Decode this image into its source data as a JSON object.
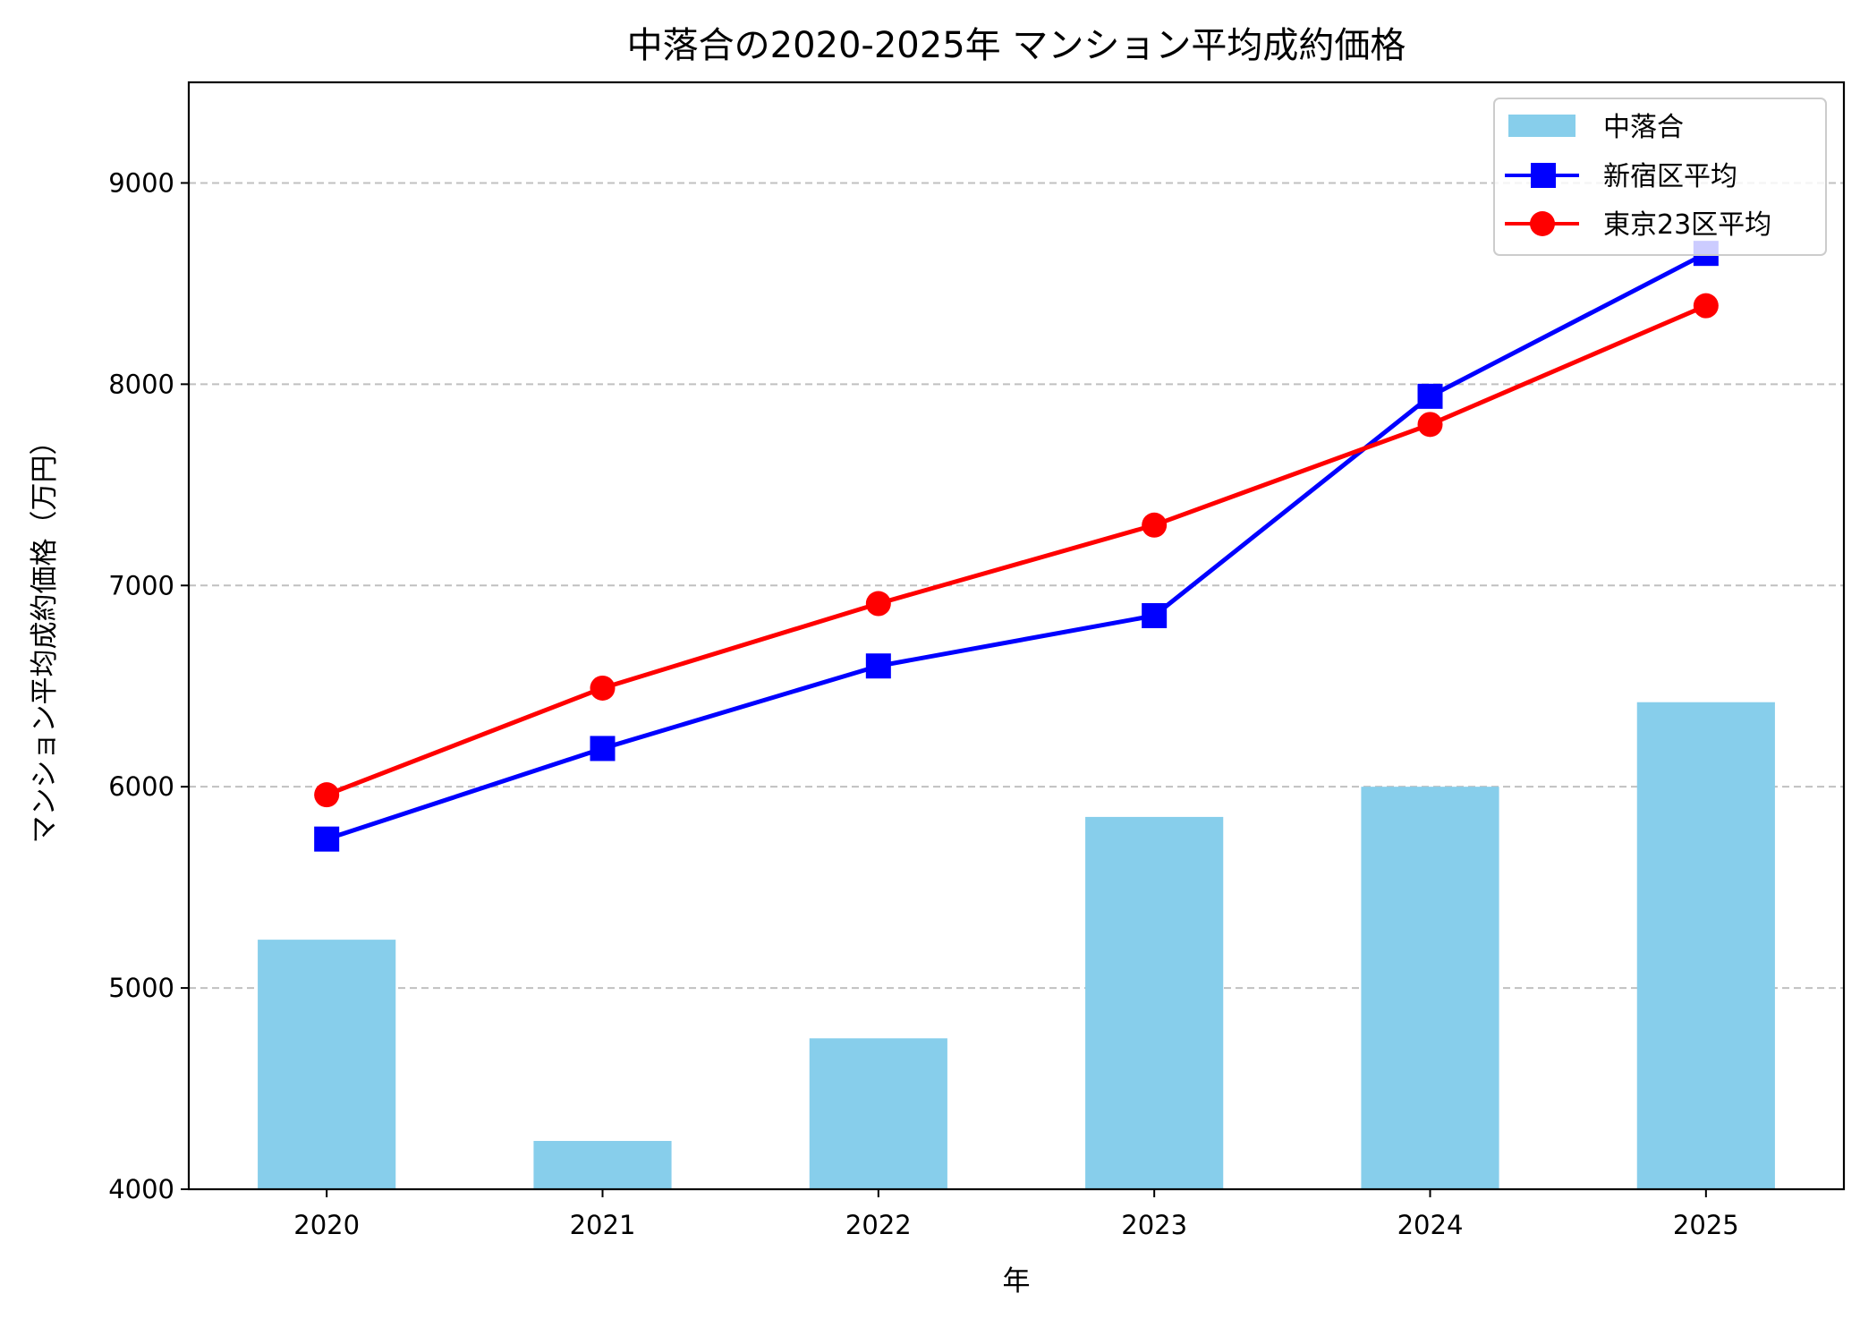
{
  "chart_data": {
    "type": "bar+line",
    "title": "中落合の2020-2025年 マンション平均成約価格",
    "xlabel": "年",
    "ylabel": "マンション平均成約価格（万円）",
    "categories": [
      "2020",
      "2021",
      "2022",
      "2023",
      "2024",
      "2025"
    ],
    "x": [
      2020,
      2021,
      2022,
      2023,
      2024,
      2025
    ],
    "xlim": [
      2019.5,
      2025.5
    ],
    "ylim": [
      4000,
      9500
    ],
    "yticks": [
      4000,
      5000,
      6000,
      7000,
      8000,
      9000
    ],
    "grid": "y-dashed",
    "legend_position": "top-right",
    "bar_width": 0.5,
    "series": [
      {
        "name": "中落合",
        "kind": "bar",
        "color": "#87ceeb",
        "values": [
          5240,
          4240,
          4750,
          5850,
          6000,
          6420
        ]
      },
      {
        "name": "新宿区平均",
        "kind": "line",
        "marker": "square",
        "color": "#0000ff",
        "values": [
          5740,
          6190,
          6600,
          6850,
          7940,
          8650
        ]
      },
      {
        "name": "東京23区平均",
        "kind": "line",
        "marker": "circle",
        "color": "#ff0000",
        "values": [
          5960,
          6490,
          6910,
          7300,
          7800,
          8390
        ]
      }
    ]
  }
}
